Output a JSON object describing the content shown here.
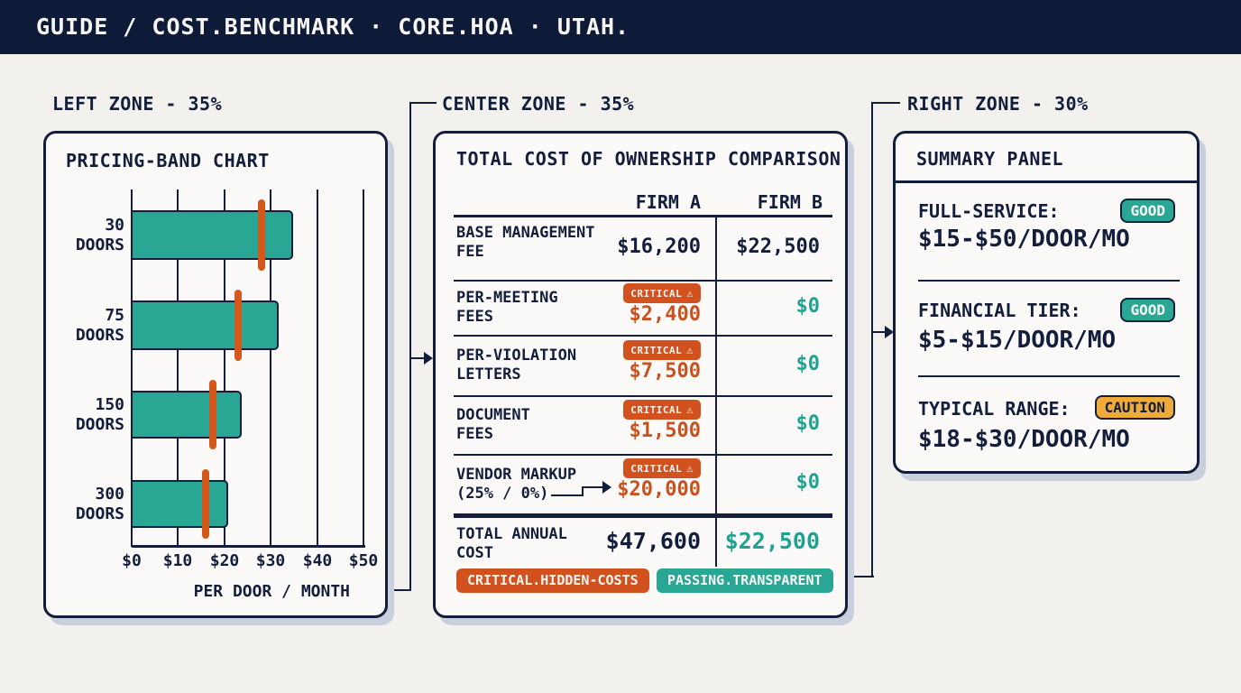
{
  "header": {
    "title": "GUIDE / COST.BENCHMARK · CORE.HOA · UTAH."
  },
  "zones": {
    "left_label": "LEFT ZONE - 35%",
    "center_label": "CENTER ZONE - 35%",
    "right_label": "RIGHT ZONE - 30%"
  },
  "colors": {
    "navy": "#131e3c",
    "header_bg": "#0d1a38",
    "teal": "#2aa794",
    "orange": "#d2521f",
    "amber": "#eeab3a",
    "bg": "#f2f1ee",
    "card": "#fbfaf8"
  },
  "chart_data": {
    "type": "bar",
    "orientation": "horizontal",
    "title": "PRICING-BAND CHART",
    "categories": [
      "30 DOORS",
      "75 DOORS",
      "150 DOORS",
      "300 DOORS"
    ],
    "values": [
      35,
      32,
      24,
      21
    ],
    "markers": [
      28,
      23,
      17.5,
      16
    ],
    "xlim": [
      0,
      50
    ],
    "xticks": [
      "$0",
      "$10",
      "$20",
      "$30",
      "$40",
      "$50"
    ],
    "xlabel": "PER DOOR / MONTH",
    "bar_color": "#2aa794",
    "marker_color": "#d4571c",
    "grid": true
  },
  "table": {
    "title": "TOTAL COST OF OWNERSHIP COMPARISON",
    "columns": [
      "FIRM A",
      "FIRM B"
    ],
    "critical_label": "CRITICAL",
    "warning_icon": "⚠",
    "rows": [
      {
        "label_top": "BASE MANAGEMENT",
        "label_bottom": "FEE",
        "a": "$16,200",
        "b": "$22,500",
        "critical": false
      },
      {
        "label_top": "PER-MEETING",
        "label_bottom": "FEES",
        "a": "$2,400",
        "b": "$0",
        "critical": true
      },
      {
        "label_top": "PER-VIOLATION",
        "label_bottom": "LETTERS",
        "a": "$7,500",
        "b": "$0",
        "critical": true
      },
      {
        "label_top": "DOCUMENT",
        "label_bottom": "FEES",
        "a": "$1,500",
        "b": "$0",
        "critical": true
      },
      {
        "label_top": "VENDOR MARKUP",
        "label_bottom": "(25% / 0%)",
        "a": "$20,000",
        "b": "$0",
        "critical": true
      }
    ],
    "total": {
      "label_top": "TOTAL ANNUAL",
      "label_bottom": "COST",
      "a": "$47,600",
      "b": "$22,500"
    },
    "footer_badges": [
      {
        "label": "CRITICAL.HIDDEN-COSTS",
        "type": "critical"
      },
      {
        "label": "PASSING.TRANSPARENT",
        "type": "passing"
      }
    ]
  },
  "summary": {
    "title": "SUMMARY PANEL",
    "items": [
      {
        "label": "FULL-SERVICE:",
        "value": "$15-$50/DOOR/MO",
        "badge": "GOOD"
      },
      {
        "label": "FINANCIAL TIER:",
        "value": "$5-$15/DOOR/MO",
        "badge": "GOOD"
      },
      {
        "label": "TYPICAL RANGE:",
        "value": "$18-$30/DOOR/MO",
        "badge": "CAUTION"
      }
    ]
  }
}
